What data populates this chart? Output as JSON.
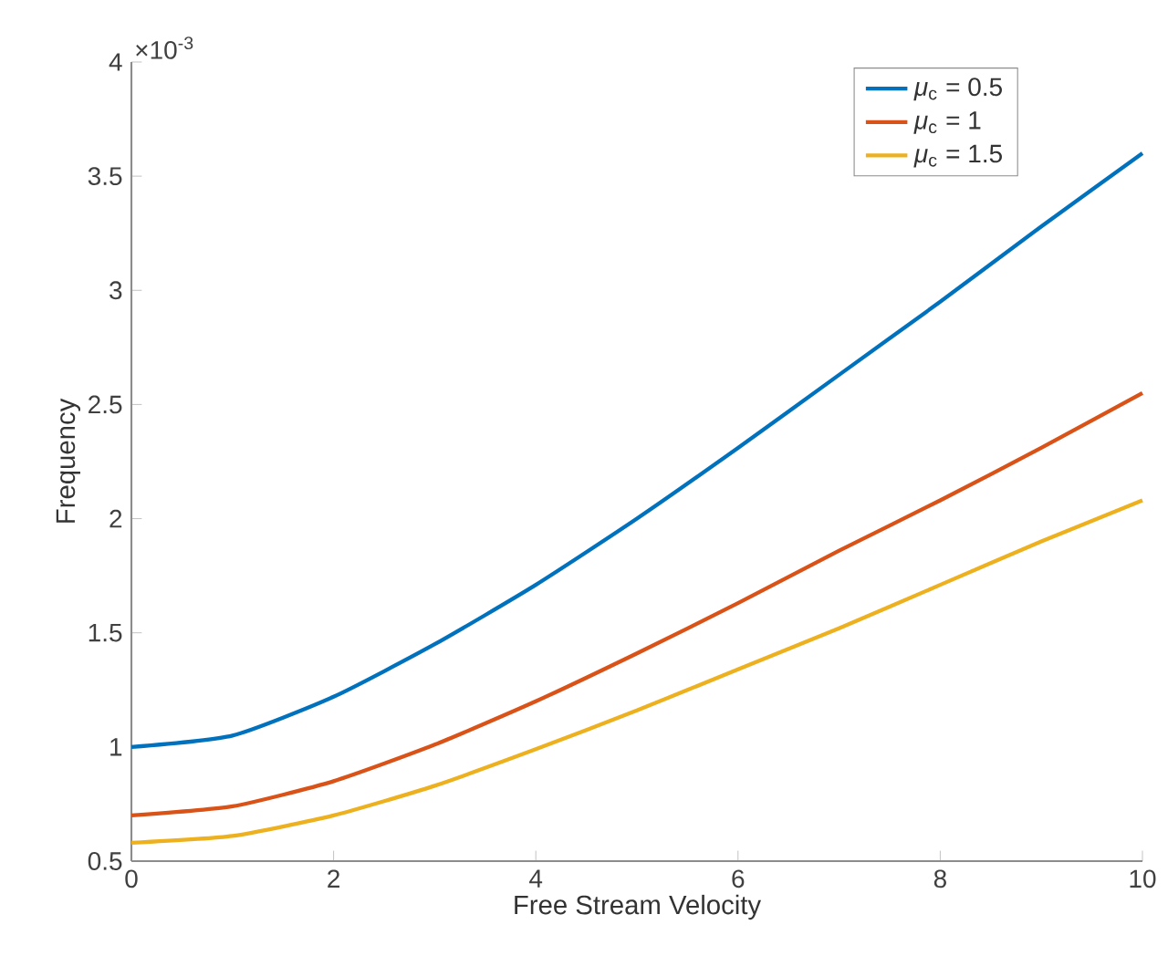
{
  "chart_data": {
    "type": "line",
    "xlabel": "Free Stream Velocity",
    "ylabel": "Frequency",
    "annotations": [
      "×10$^{-3}$"
    ],
    "x": [
      0,
      1,
      2,
      3,
      4,
      5,
      6,
      7,
      8,
      9,
      10
    ],
    "series": [
      {
        "name": "*μ*$_{c}$ = 0.5",
        "color": "#0072bd",
        "values": [
          1.0,
          1.05,
          1.22,
          1.45,
          1.71,
          2.0,
          2.31,
          2.63,
          2.95,
          3.28,
          3.6
        ]
      },
      {
        "name": "*μ*$_{c}$ = 1",
        "color": "#d95319",
        "values": [
          0.7,
          0.74,
          0.85,
          1.01,
          1.2,
          1.41,
          1.63,
          1.86,
          2.08,
          2.31,
          2.55
        ]
      },
      {
        "name": "*μ*$_{c}$ = 1.5",
        "color": "#edb120",
        "values": [
          0.58,
          0.61,
          0.7,
          0.83,
          0.99,
          1.16,
          1.34,
          1.52,
          1.71,
          1.9,
          2.08
        ]
      }
    ],
    "xlim": [
      0,
      10
    ],
    "xticks": [
      0,
      2,
      4,
      6,
      8,
      10
    ],
    "ylim": [
      0.5,
      4
    ],
    "yticks": [
      0.5,
      1,
      1.5,
      2,
      2.5,
      3,
      3.5,
      4
    ],
    "legend": "top right",
    "marker": "none",
    "line_style": "solid",
    "grid": false
  }
}
